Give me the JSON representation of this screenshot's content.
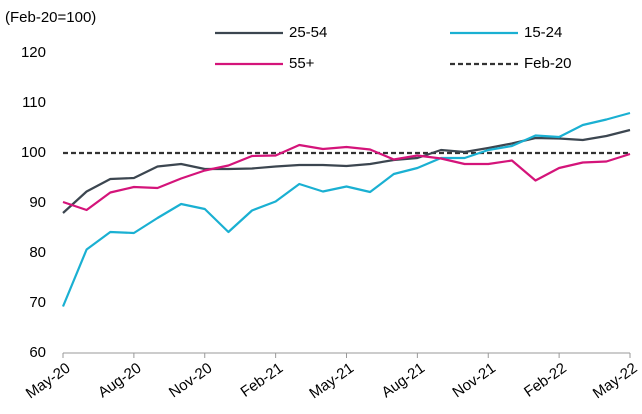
{
  "chart_data": {
    "type": "line",
    "ylabel": "(Feb-20=100)",
    "categories": [
      "May-20",
      null,
      null,
      "Aug-20",
      null,
      null,
      "Nov-20",
      null,
      null,
      "Feb-21",
      null,
      null,
      "May-21",
      null,
      null,
      "Aug-21",
      null,
      null,
      "Nov-21",
      null,
      null,
      "Feb-22",
      null,
      null,
      "May-22"
    ],
    "series": [
      {
        "name": "25-54",
        "color": "#3c4650",
        "values": [
          88,
          92.3,
          94.8,
          95,
          97.3,
          97.8,
          96.8,
          96.8,
          96.9,
          97.3,
          97.6,
          97.6,
          97.4,
          97.8,
          98.6,
          99,
          100.6,
          100.2,
          101,
          101.9,
          103,
          102.9,
          102.6,
          103.4,
          104.6
        ]
      },
      {
        "name": "15-24",
        "color": "#1ab0d2",
        "values": [
          69.3,
          80.7,
          84.2,
          84,
          87,
          89.8,
          88.8,
          84.2,
          88.5,
          90.3,
          93.8,
          92.3,
          93.3,
          92.2,
          95.8,
          97,
          99,
          99,
          100.6,
          101.4,
          103.5,
          103.2,
          105.6,
          106.7,
          108
        ]
      },
      {
        "name": "55+",
        "color": "#d4147a",
        "values": [
          90.2,
          88.6,
          92.1,
          93.2,
          93,
          94.9,
          96.5,
          97.5,
          99.4,
          99.5,
          101.6,
          100.8,
          101.2,
          100.7,
          98.7,
          99.5,
          98.9,
          97.8,
          97.8,
          98.5,
          94.5,
          97,
          98.1,
          98.3,
          99.8
        ]
      },
      {
        "name": "Feb-20",
        "color": "#333333",
        "dashed": true,
        "values": [
          100,
          100,
          100,
          100,
          100,
          100,
          100,
          100,
          100,
          100,
          100,
          100,
          100,
          100,
          100,
          100,
          100,
          100,
          100,
          100,
          100,
          100,
          100,
          100,
          100
        ]
      }
    ],
    "ylim": [
      60,
      120
    ],
    "yticks": [
      60,
      70,
      80,
      90,
      100,
      110,
      120
    ],
    "grid": false
  }
}
